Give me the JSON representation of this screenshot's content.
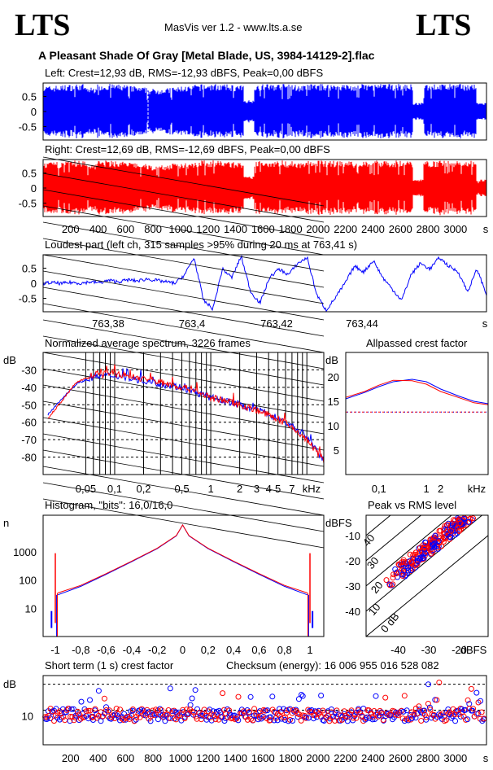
{
  "header": {
    "logo_left": "LTS",
    "logo_right": "LTS",
    "app": "MasVis ver 1.2 - www.lts.a.se",
    "file": "A Pleasant Shade Of Gray [Metal Blade, US, 3984-14129-2].flac"
  },
  "colors": {
    "left": "#0000ff",
    "right": "#ff0000",
    "grid": "#000000"
  },
  "panels": {
    "left_wave": {
      "title": "Left: Crest=12,93 dB, RMS=-12,93 dBFS, Peak=0,00 dBFS",
      "yticks": [
        "0.5",
        "0",
        "-0.5"
      ]
    },
    "right_wave": {
      "title": "Right: Crest=12,69 dB, RMS=-12,69 dBFS, Peak=0,00 dBFS",
      "yticks": [
        "0.5",
        "0",
        "-0.5"
      ],
      "xticks": [
        "200",
        "400",
        "600",
        "800",
        "1000",
        "1200",
        "1400",
        "1600",
        "1800",
        "2000",
        "2200",
        "2400",
        "2600",
        "2800",
        "3000"
      ],
      "xunit": "s"
    },
    "loudest": {
      "title": "Loudest part (left  ch, 315 samples >95% during 20 ms at 763,41 s)",
      "yticks": [
        "0.5",
        "0",
        "-0.5"
      ],
      "xticks": [
        "763,38",
        "763,4",
        "763,42",
        "763,44"
      ],
      "xunit": "s"
    },
    "spectrum": {
      "title": "Normalized average spectrum, 3226 frames",
      "ylabel": "dB",
      "yticks": [
        "-30",
        "-40",
        "-50",
        "-60",
        "-70",
        "-80"
      ],
      "xticks": [
        "0,05",
        "0,1",
        "0,2",
        "0,5",
        "1",
        "2",
        "3",
        "4",
        "5",
        "7"
      ],
      "xunit": "kHz"
    },
    "allpass": {
      "title": "Allpassed crest factor",
      "ylabel": "dB",
      "yticks": [
        "20",
        "15",
        "10",
        "5"
      ],
      "xticks": [
        "0,1",
        "1",
        "2"
      ],
      "xunit": "kHz"
    },
    "histogram": {
      "title": "Histogram, \"bits\": 16,0/16,0",
      "ylabel": "n",
      "yticks": [
        "1000",
        "100",
        "10"
      ],
      "xticks": [
        "-1",
        "-0,8",
        "-0,6",
        "-0,4",
        "-0,2",
        "0",
        "0,2",
        "0,4",
        "0,6",
        "0,8",
        "1"
      ]
    },
    "peakrms": {
      "title": "Peak vs RMS level",
      "ylabel": "dBFS",
      "yticks": [
        "-10",
        "-20",
        "-30",
        "-40"
      ],
      "xticks": [
        "-40",
        "-30",
        "-20"
      ],
      "xunit": "dBFS",
      "diag": [
        "40",
        "30",
        "20",
        "10",
        "0 dB"
      ]
    },
    "shortcrest": {
      "title": "Short term (1 s) crest factor",
      "checksum": "Checksum (energy):  16 006 955 016 528 082",
      "ylabel": "dB",
      "yticks": [
        "10"
      ],
      "xticks": [
        "200",
        "400",
        "600",
        "800",
        "1000",
        "1200",
        "1400",
        "1600",
        "1800",
        "2000",
        "2200",
        "2400",
        "2600",
        "2800",
        "3000"
      ],
      "xunit": "s"
    }
  },
  "chart_data": [
    {
      "type": "area",
      "name": "left_wave",
      "x_range_s": [
        0,
        3226
      ],
      "ylim": [
        -1,
        1
      ],
      "envelope": [
        0.9,
        0.92,
        0.95,
        0.97,
        0.85,
        0.97,
        0.97,
        0.95,
        0.9,
        0.85,
        0.8,
        0.82,
        0.86,
        0.9,
        0.95,
        0.97,
        0.97,
        0.95,
        0.92,
        0.4,
        0.97,
        0.97,
        0.97,
        0.95,
        0.92,
        0.97,
        0.97,
        0.97,
        0.96,
        0.93,
        0.97,
        0.97,
        0.97,
        0.97,
        0.96,
        0.3,
        0.97,
        0.97,
        0.97,
        0.97,
        0.97,
        0.3
      ]
    },
    {
      "type": "area",
      "name": "right_wave",
      "x_range_s": [
        0,
        3226
      ],
      "ylim": [
        -1,
        1
      ],
      "envelope": [
        0.9,
        0.92,
        0.95,
        0.97,
        0.86,
        0.97,
        0.97,
        0.95,
        0.9,
        0.85,
        0.8,
        0.82,
        0.86,
        0.9,
        0.95,
        0.97,
        0.97,
        0.95,
        0.92,
        0.4,
        0.97,
        0.97,
        0.97,
        0.95,
        0.92,
        0.97,
        0.97,
        0.97,
        0.96,
        0.93,
        0.97,
        0.97,
        0.97,
        0.97,
        0.96,
        0.3,
        0.97,
        0.97,
        0.97,
        0.97,
        0.97,
        0.3
      ]
    },
    {
      "type": "line",
      "name": "loudest",
      "x_range_s": [
        763.37,
        763.45
      ],
      "ylim": [
        -1,
        1
      ],
      "y": [
        0.0,
        0.02,
        -0.01,
        0.03,
        0.0,
        0.05,
        0.02,
        0.1,
        0.05,
        0.12,
        0.08,
        0.15,
        0.1,
        0.05,
        0.0,
        0.3,
        0.9,
        -0.6,
        -0.9,
        0.5,
        0.2,
        0.95,
        -0.3,
        -0.7,
        0.2,
        0.5,
        0.3,
        0.7,
        0.9,
        -0.4,
        -0.95,
        -0.5,
        0.0,
        0.6,
        0.4,
        0.8,
        0.2,
        -0.2,
        -0.6,
        0.3,
        0.7,
        0.5,
        0.9,
        0.6,
        0.4,
        -0.3,
        0.5,
        -0.4
      ]
    },
    {
      "type": "line",
      "name": "spectrum",
      "x_khz_log": [
        0.02,
        0.03,
        0.04,
        0.06,
        0.1,
        0.15,
        0.2,
        0.3,
        0.5,
        0.7,
        1,
        1.5,
        2,
        3,
        4,
        5,
        7,
        10,
        14
      ],
      "series": [
        {
          "name": "left",
          "values": [
            -56,
            -45,
            -38,
            -34,
            -33,
            -35,
            -36,
            -38,
            -40,
            -43,
            -46,
            -48,
            -50,
            -53,
            -55,
            -58,
            -62,
            -68,
            -80
          ]
        },
        {
          "name": "right",
          "values": [
            -58,
            -46,
            -37,
            -33,
            -32,
            -34,
            -35,
            -37,
            -40,
            -42,
            -46,
            -48,
            -50,
            -53,
            -56,
            -58,
            -63,
            -70,
            -80
          ]
        }
      ],
      "ylim": [
        -90,
        -20
      ]
    },
    {
      "type": "line",
      "name": "allpass",
      "x_khz_log": [
        0.02,
        0.05,
        0.1,
        0.2,
        0.5,
        1,
        2,
        5,
        10,
        20
      ],
      "series": [
        {
          "name": "left",
          "values": [
            15.5,
            16.8,
            18,
            19,
            19.5,
            19,
            17.5,
            16,
            15,
            14.5
          ]
        },
        {
          "name": "right",
          "values": [
            15.8,
            17,
            18.3,
            19.3,
            19.2,
            18.5,
            17,
            15.7,
            14.7,
            14.3
          ]
        }
      ],
      "reference": 12.8,
      "ylim": [
        0,
        25
      ]
    },
    {
      "type": "line",
      "name": "histogram",
      "x": [
        -1,
        -0.98,
        -0.8,
        -0.6,
        -0.4,
        -0.2,
        -0.05,
        0,
        0.05,
        0.2,
        0.4,
        0.6,
        0.8,
        0.98,
        1
      ],
      "series": [
        {
          "name": "left",
          "values": [
            8,
            30,
            60,
            160,
            450,
            1300,
            3700,
            9000,
            3700,
            1300,
            450,
            160,
            60,
            30,
            8
          ]
        },
        {
          "name": "right",
          "values": [
            8,
            35,
            65,
            170,
            470,
            1350,
            3800,
            9000,
            3800,
            1350,
            470,
            170,
            65,
            35,
            8
          ]
        }
      ],
      "yscale": "log",
      "ylim": [
        1,
        20000
      ]
    },
    {
      "type": "scatter",
      "name": "peakrms",
      "xlim": [
        -50,
        -10
      ],
      "ylim": [
        -50,
        -2
      ]
    },
    {
      "type": "scatter",
      "name": "shortcrest",
      "x_range_s": [
        0,
        3226
      ],
      "ylim": [
        5,
        17
      ],
      "ref_lines": [
        11,
        15.5
      ]
    }
  ]
}
